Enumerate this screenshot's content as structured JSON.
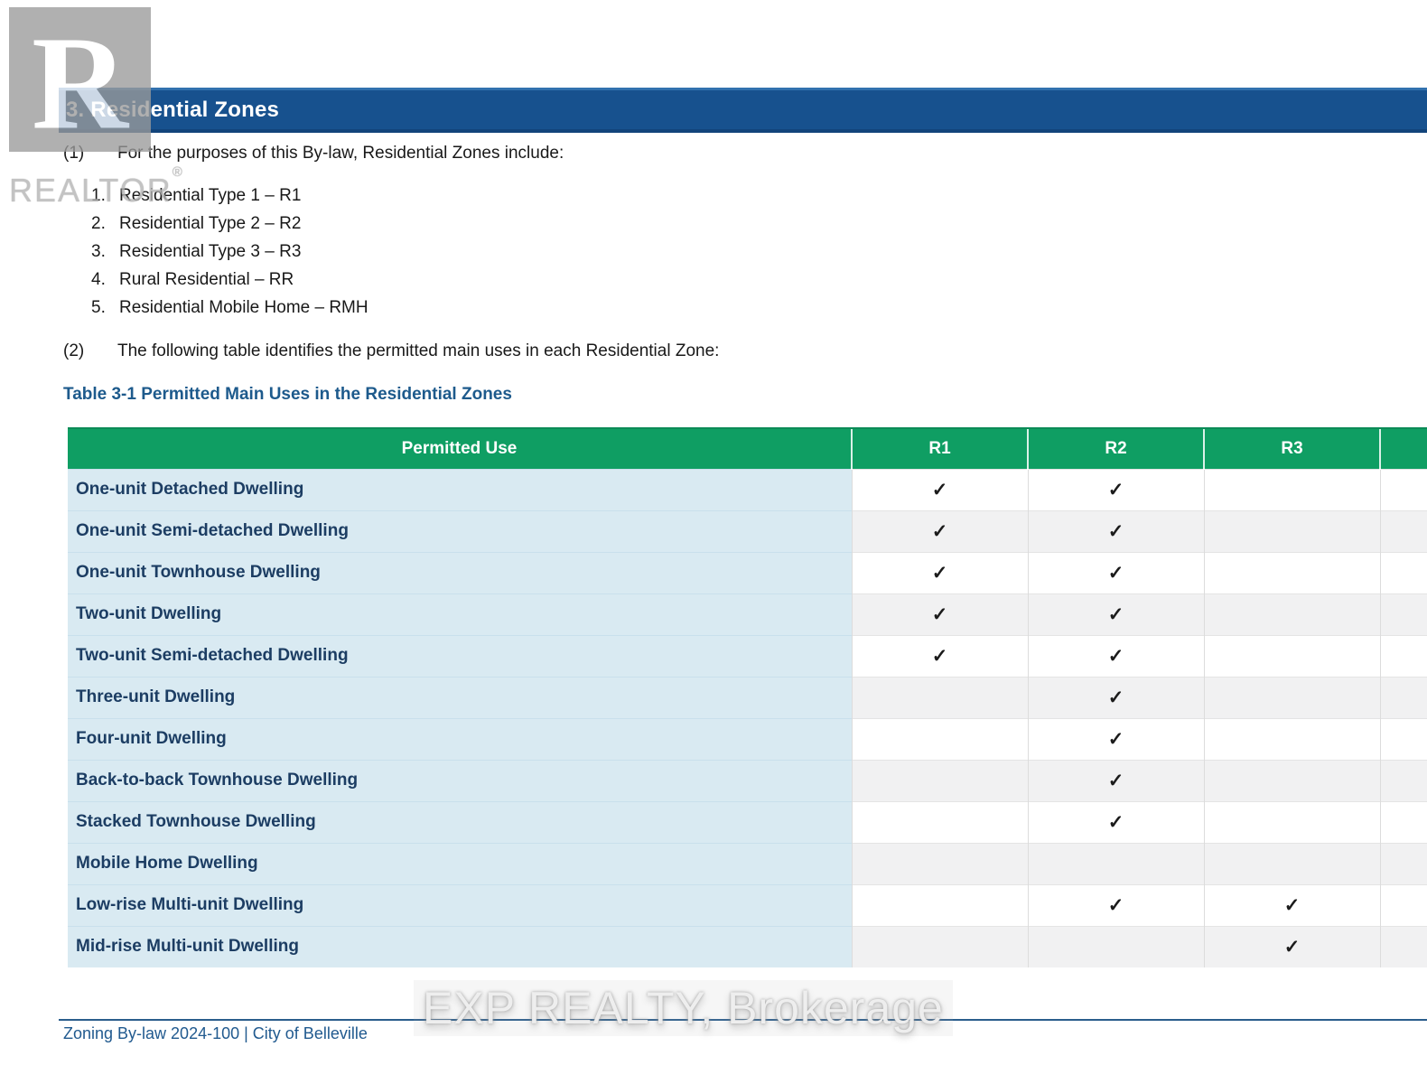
{
  "section": {
    "title": "3. Residential Zones"
  },
  "clauses": [
    {
      "num": "(1)",
      "text": "For the purposes of this By-law, Residential Zones include:"
    },
    {
      "num": "(2)",
      "text": "The following table identifies the permitted main uses in each Residential Zone:"
    }
  ],
  "zone_list": [
    {
      "num": "1.",
      "text": "Residential Type 1 – R1"
    },
    {
      "num": "2.",
      "text": "Residential Type 2 – R2"
    },
    {
      "num": "3.",
      "text": "Residential Type 3 – R3"
    },
    {
      "num": "4.",
      "text": "Rural Residential – RR"
    },
    {
      "num": "5.",
      "text": "Residential Mobile Home – RMH"
    }
  ],
  "table": {
    "caption": "Table 3-1 Permitted Main Uses in the Residential Zones",
    "columns": [
      "Permitted Use",
      "R1",
      "R2",
      "R3",
      ""
    ],
    "check_glyph": "✓",
    "rows": [
      {
        "use": "One-unit Detached Dwelling",
        "checks": [
          true,
          true,
          false,
          false
        ]
      },
      {
        "use": "One-unit Semi-detached Dwelling",
        "checks": [
          true,
          true,
          false,
          false
        ]
      },
      {
        "use": "One-unit Townhouse Dwelling",
        "checks": [
          true,
          true,
          false,
          false
        ]
      },
      {
        "use": "Two-unit Dwelling",
        "checks": [
          true,
          true,
          false,
          false
        ]
      },
      {
        "use": "Two-unit Semi-detached Dwelling",
        "checks": [
          true,
          true,
          false,
          false
        ]
      },
      {
        "use": "Three-unit Dwelling",
        "checks": [
          false,
          true,
          false,
          false
        ]
      },
      {
        "use": "Four-unit Dwelling",
        "checks": [
          false,
          true,
          false,
          false
        ]
      },
      {
        "use": "Back-to-back Townhouse Dwelling",
        "checks": [
          false,
          true,
          false,
          false
        ]
      },
      {
        "use": "Stacked Townhouse Dwelling",
        "checks": [
          false,
          true,
          false,
          false
        ]
      },
      {
        "use": "Mobile Home Dwelling",
        "checks": [
          false,
          false,
          false,
          false
        ]
      },
      {
        "use": "Low-rise Multi-unit Dwelling",
        "checks": [
          false,
          true,
          true,
          false
        ]
      },
      {
        "use": "Mid-rise Multi-unit Dwelling",
        "checks": [
          false,
          false,
          true,
          false
        ]
      }
    ]
  },
  "footer": {
    "text": "Zoning By-law 2024-100 | City of Belleville"
  },
  "watermarks": {
    "realtor_glyph": "R",
    "realtor_word": "REALTOR",
    "realtor_reg": "®",
    "exp_text": "EXP REALTY, Brokerage"
  },
  "colors": {
    "section_bar_blue": "#17518e",
    "table_header_green": "#0f9e63",
    "label_column_blue": "#d9eaf2",
    "label_text_navy": "#1c3d63",
    "caption_blue": "#1d5a8c",
    "footer_blue": "#215a8f",
    "row_stripe_gray": "#f1f1f2"
  }
}
